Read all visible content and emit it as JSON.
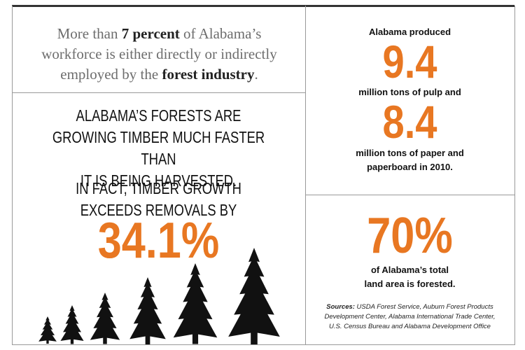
{
  "intro": {
    "parts": [
      "More than ",
      "7 percent",
      " of Alabama’s workforce is either directly or indirectly employed by the ",
      "forest industry",
      "."
    ]
  },
  "growth": {
    "statement": [
      "ALABAMA’S FORESTS ARE",
      "GROWING TIMBER MUCH FASTER THAN",
      "IT IS BEING HARVESTED."
    ],
    "lead": [
      "IN FACT, TIMBER GROWTH",
      "EXCEEDS REMOVALS BY"
    ],
    "figure": "34.1%"
  },
  "production": {
    "lead": "Alabama produced",
    "pulp_figure": "9.4",
    "pulp_text": "million tons of pulp and",
    "paper_figure": "8.4",
    "paper_text": [
      "million tons of paper and",
      "paperboard in 2010."
    ]
  },
  "forested": {
    "figure": "70%",
    "text": [
      "of Alabama’s total",
      "land area is forested."
    ]
  },
  "sources": {
    "label": "Sources:",
    "text": [
      " USDA Forest Service, Auburn Forest Products",
      "Development Center, Alabama International Trade Center,",
      "U.S. Census Bureau and Alabama Development Office"
    ]
  }
}
